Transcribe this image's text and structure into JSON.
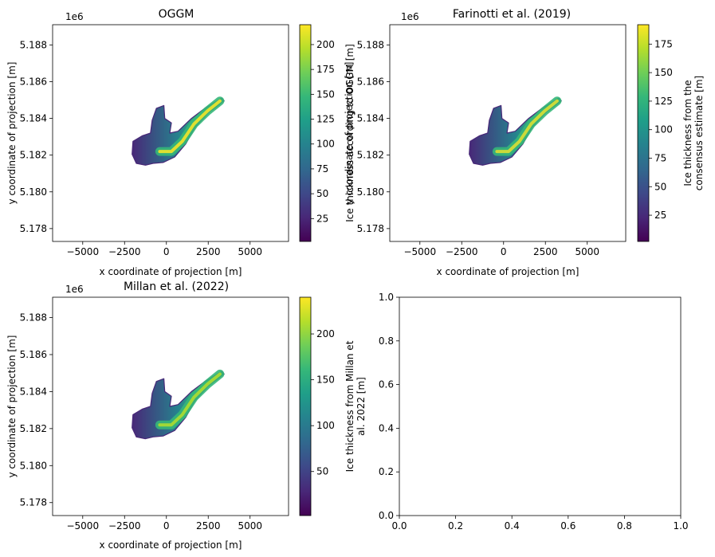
{
  "colormap": [
    "#440154",
    "#482878",
    "#3e4989",
    "#31688e",
    "#26828e",
    "#1f9e89",
    "#35b779",
    "#6ece58",
    "#b5de2b",
    "#fde725"
  ],
  "axis_text": {
    "x_tick_labels": [
      "−5000",
      "−2500",
      "0",
      "2500",
      "5000"
    ],
    "y_tick_labels": [
      "5.178",
      "5.180",
      "5.182",
      "5.184",
      "5.186",
      "5.188"
    ],
    "y_offset": "1e6",
    "xlabel": "x coordinate of projection [m]",
    "ylabel": "y coordinate of projection [m]"
  },
  "chart_data": [
    {
      "type": "heatmap",
      "title": "OGGM",
      "xlabel": "x coordinate of projection [m]",
      "ylabel": "y coordinate of projection [m]",
      "y_offset": "1e6",
      "xlim": [
        -6800,
        7300
      ],
      "ylim": [
        5177300,
        5189100
      ],
      "x_ticks": [
        -5000,
        -2500,
        0,
        2500,
        5000
      ],
      "y_ticks": [
        5178000,
        5180000,
        5182000,
        5184000,
        5186000,
        5188000
      ],
      "colorbar": {
        "range": [
          2,
          220
        ],
        "ticks": [
          25,
          50,
          75,
          100,
          125,
          150,
          175,
          200
        ],
        "label": "Ice thickness according to OGGM [m]"
      },
      "peak_thickness": 220
    },
    {
      "type": "heatmap",
      "title": "Farinotti et al. (2019)",
      "xlabel": "x coordinate of projection [m]",
      "ylabel": "y coordinate of projection [m]",
      "y_offset": "1e6",
      "xlim": [
        -6800,
        7300
      ],
      "ylim": [
        5177300,
        5189100
      ],
      "x_ticks": [
        -5000,
        -2500,
        0,
        2500,
        5000
      ],
      "y_ticks": [
        5178000,
        5180000,
        5182000,
        5184000,
        5186000,
        5188000
      ],
      "colorbar": {
        "range": [
          2,
          192
        ],
        "ticks": [
          25,
          50,
          75,
          100,
          125,
          150,
          175
        ],
        "label_lines": [
          "Ice thickness from the",
          "consensus estimate [m]"
        ]
      },
      "peak_thickness": 192
    },
    {
      "type": "heatmap",
      "title": "Millan et al. (2022)",
      "xlabel": "x coordinate of projection [m]",
      "ylabel": "y coordinate of projection [m]",
      "y_offset": "1e6",
      "xlim": [
        -6800,
        7300
      ],
      "ylim": [
        5177300,
        5189100
      ],
      "x_ticks": [
        -5000,
        -2500,
        0,
        2500,
        5000
      ],
      "y_ticks": [
        5178000,
        5180000,
        5182000,
        5184000,
        5186000,
        5188000
      ],
      "colorbar": {
        "range": [
          2,
          240
        ],
        "ticks": [
          50,
          100,
          150,
          200
        ],
        "label_lines": [
          "Ice thickness from Millan et",
          "al. 2022 [m]"
        ]
      },
      "peak_thickness": 240
    },
    {
      "type": "line",
      "series": [],
      "xlim": [
        0,
        1
      ],
      "ylim": [
        0,
        1
      ],
      "x_ticks": [
        0,
        0.2,
        0.4,
        0.6,
        0.8,
        1.0
      ],
      "y_ticks": [
        0,
        0.2,
        0.4,
        0.6,
        0.8,
        1.0
      ],
      "x_tick_labels": [
        "0.0",
        "0.2",
        "0.4",
        "0.6",
        "0.8",
        "1.0"
      ],
      "y_tick_labels": [
        "0.0",
        "0.2",
        "0.4",
        "0.6",
        "0.8",
        "1.0"
      ]
    }
  ]
}
